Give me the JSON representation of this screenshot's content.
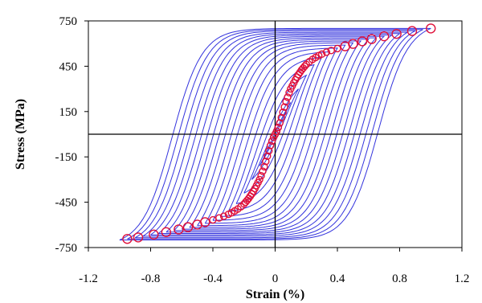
{
  "chart_data": {
    "type": "line",
    "xlabel": "Strain (%)",
    "ylabel": "Stress (MPa)",
    "xlim": [
      -1.2,
      1.2
    ],
    "ylim": [
      -750,
      750
    ],
    "x_ticks": [
      -1.2,
      -0.8,
      -0.4,
      0,
      0.4,
      0.8,
      1.2
    ],
    "x_tick_labels": [
      "-1.2",
      "-0.8",
      "-0.4",
      "0",
      "0.4",
      "0.8",
      "1.2"
    ],
    "y_ticks": [
      750,
      450,
      150,
      -150,
      -450,
      -750
    ],
    "y_tick_labels": [
      "750",
      "450",
      "150",
      "-150",
      "-450",
      "-750"
    ],
    "grid": false,
    "colors": {
      "loops": "#3333dd",
      "markers": "#e0103a",
      "axes": "#000000"
    },
    "series": [
      {
        "type": "hysteresis-loops",
        "loops": [
          {
            "strain_amplitude": 0.1,
            "stress_amplitude": 210
          },
          {
            "strain_amplitude": 0.15,
            "stress_amplitude": 300
          },
          {
            "strain_amplitude": 0.2,
            "stress_amplitude": 390
          },
          {
            "strain_amplitude": 0.25,
            "stress_amplitude": 460
          },
          {
            "strain_amplitude": 0.3,
            "stress_amplitude": 510
          },
          {
            "strain_amplitude": 0.35,
            "stress_amplitude": 545
          },
          {
            "strain_amplitude": 0.4,
            "stress_amplitude": 570
          },
          {
            "strain_amplitude": 0.45,
            "stress_amplitude": 590
          },
          {
            "strain_amplitude": 0.5,
            "stress_amplitude": 605
          },
          {
            "strain_amplitude": 0.55,
            "stress_amplitude": 617
          },
          {
            "strain_amplitude": 0.6,
            "stress_amplitude": 628
          },
          {
            "strain_amplitude": 0.65,
            "stress_amplitude": 638
          },
          {
            "strain_amplitude": 0.7,
            "stress_amplitude": 648
          },
          {
            "strain_amplitude": 0.75,
            "stress_amplitude": 657
          },
          {
            "strain_amplitude": 0.8,
            "stress_amplitude": 666
          },
          {
            "strain_amplitude": 0.85,
            "stress_amplitude": 675
          },
          {
            "strain_amplitude": 0.9,
            "stress_amplitude": 685
          },
          {
            "strain_amplitude": 0.95,
            "stress_amplitude": 693
          },
          {
            "strain_amplitude": 1.0,
            "stress_amplitude": 700
          }
        ]
      },
      {
        "type": "scatter",
        "marker": "circle-open",
        "points": [
          {
            "x": 0.0,
            "y": 0
          },
          {
            "x": 0.01,
            "y": 20
          },
          {
            "x": 0.02,
            "y": 45
          },
          {
            "x": 0.03,
            "y": 75
          },
          {
            "x": 0.04,
            "y": 110
          },
          {
            "x": 0.05,
            "y": 145
          },
          {
            "x": 0.06,
            "y": 180
          },
          {
            "x": 0.07,
            "y": 215
          },
          {
            "x": 0.08,
            "y": 245
          },
          {
            "x": 0.09,
            "y": 275
          },
          {
            "x": 0.1,
            "y": 300
          },
          {
            "x": 0.11,
            "y": 320
          },
          {
            "x": 0.12,
            "y": 340
          },
          {
            "x": 0.13,
            "y": 360
          },
          {
            "x": 0.14,
            "y": 378
          },
          {
            "x": 0.15,
            "y": 395
          },
          {
            "x": 0.16,
            "y": 410
          },
          {
            "x": 0.17,
            "y": 425
          },
          {
            "x": 0.18,
            "y": 438
          },
          {
            "x": 0.19,
            "y": 450
          },
          {
            "x": 0.2,
            "y": 462
          },
          {
            "x": 0.22,
            "y": 480
          },
          {
            "x": 0.24,
            "y": 495
          },
          {
            "x": 0.26,
            "y": 508
          },
          {
            "x": 0.28,
            "y": 520
          },
          {
            "x": 0.3,
            "y": 530
          },
          {
            "x": 0.33,
            "y": 543
          },
          {
            "x": 0.36,
            "y": 554
          },
          {
            "x": 0.4,
            "y": 567
          },
          {
            "x": 0.45,
            "y": 582
          },
          {
            "x": 0.5,
            "y": 598
          },
          {
            "x": 0.56,
            "y": 615
          },
          {
            "x": 0.62,
            "y": 630
          },
          {
            "x": 0.7,
            "y": 648
          },
          {
            "x": 0.78,
            "y": 664
          },
          {
            "x": 0.88,
            "y": 683
          },
          {
            "x": 1.0,
            "y": 700
          },
          {
            "x": -0.01,
            "y": -20
          },
          {
            "x": -0.02,
            "y": -45
          },
          {
            "x": -0.03,
            "y": -75
          },
          {
            "x": -0.04,
            "y": -110
          },
          {
            "x": -0.05,
            "y": -145
          },
          {
            "x": -0.06,
            "y": -180
          },
          {
            "x": -0.07,
            "y": -215
          },
          {
            "x": -0.08,
            "y": -245
          },
          {
            "x": -0.09,
            "y": -275
          },
          {
            "x": -0.1,
            "y": -300
          },
          {
            "x": -0.11,
            "y": -320
          },
          {
            "x": -0.12,
            "y": -340
          },
          {
            "x": -0.13,
            "y": -360
          },
          {
            "x": -0.14,
            "y": -378
          },
          {
            "x": -0.15,
            "y": -395
          },
          {
            "x": -0.16,
            "y": -410
          },
          {
            "x": -0.17,
            "y": -425
          },
          {
            "x": -0.18,
            "y": -438
          },
          {
            "x": -0.19,
            "y": -450
          },
          {
            "x": -0.2,
            "y": -462
          },
          {
            "x": -0.22,
            "y": -480
          },
          {
            "x": -0.24,
            "y": -495
          },
          {
            "x": -0.26,
            "y": -508
          },
          {
            "x": -0.28,
            "y": -520
          },
          {
            "x": -0.3,
            "y": -530
          },
          {
            "x": -0.33,
            "y": -543
          },
          {
            "x": -0.36,
            "y": -554
          },
          {
            "x": -0.4,
            "y": -567
          },
          {
            "x": -0.45,
            "y": -582
          },
          {
            "x": -0.5,
            "y": -598
          },
          {
            "x": -0.56,
            "y": -615
          },
          {
            "x": -0.62,
            "y": -630
          },
          {
            "x": -0.7,
            "y": -648
          },
          {
            "x": -0.78,
            "y": -664
          },
          {
            "x": -0.88,
            "y": -683
          },
          {
            "x": -0.95,
            "y": -693
          }
        ]
      }
    ]
  }
}
